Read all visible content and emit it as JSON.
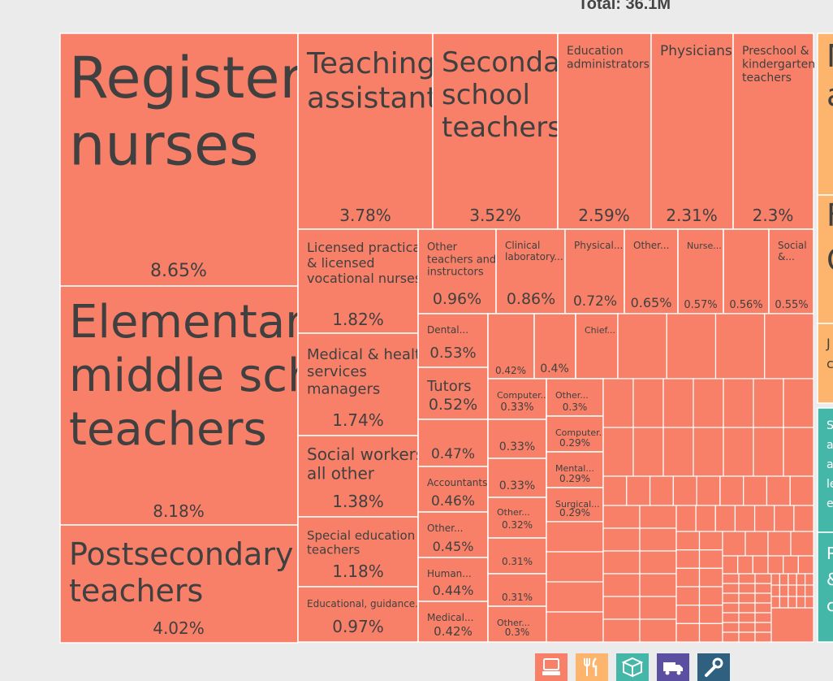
{
  "total_label": "Total: 36.1M",
  "chart_data": {
    "type": "treemap",
    "title": "",
    "colors": {
      "education_health": "#f98068",
      "orange_group": "#fdb46c",
      "teal_group": "#45b7a8",
      "border": "#ffffff"
    },
    "cells": [
      {
        "label": "Registered nurses",
        "value": "8.65%"
      },
      {
        "label": "Elementary & middle school teachers",
        "value": "8.18%"
      },
      {
        "label": "Postsecondary teachers",
        "value": "4.02%"
      },
      {
        "label": "Teaching assistants",
        "value": "3.78%"
      },
      {
        "label": "Secondary school teachers",
        "value": "3.52%"
      },
      {
        "label": "Education administrators",
        "value": "2.59%"
      },
      {
        "label": "Physicians",
        "value": "2.31%"
      },
      {
        "label": "Preschool & kindergarten teachers",
        "value": "2.3%"
      },
      {
        "label": "Licensed practical & licensed vocational nurses",
        "value": "1.82%"
      },
      {
        "label": "Medical & health services managers",
        "value": "1.74%"
      },
      {
        "label": "Social workers, all other",
        "value": "1.38%"
      },
      {
        "label": "Special education teachers",
        "value": "1.18%"
      },
      {
        "label": "Educational, guidance...",
        "value": "0.97%"
      },
      {
        "label": "Other teachers and instructors",
        "value": "0.96%"
      },
      {
        "label": "Clinical laboratory...",
        "value": "0.86%"
      },
      {
        "label": "Physical...",
        "value": "0.72%"
      },
      {
        "label": "Other...",
        "value": "0.65%"
      },
      {
        "label": "Nurse...",
        "value": "0.57%"
      },
      {
        "label": "",
        "value": "0.56%"
      },
      {
        "label": "Social &...",
        "value": "0.55%"
      },
      {
        "label": "Dental...",
        "value": "0.53%"
      },
      {
        "label": "Tutors",
        "value": "0.52%"
      },
      {
        "label": "",
        "value": "0.47%"
      },
      {
        "label": "Accountants...",
        "value": "0.46%"
      },
      {
        "label": "Other...",
        "value": "0.45%"
      },
      {
        "label": "Human...",
        "value": "0.44%"
      },
      {
        "label": "Medical...",
        "value": "0.42%"
      },
      {
        "label": "",
        "value": "0.42%"
      },
      {
        "label": "",
        "value": "0.4%"
      },
      {
        "label": "Chief...",
        "value": ""
      },
      {
        "label": "Computer...",
        "value": "0.33%"
      },
      {
        "label": "",
        "value": "0.33%"
      },
      {
        "label": "",
        "value": "0.33%"
      },
      {
        "label": "Other...",
        "value": "0.32%"
      },
      {
        "label": "",
        "value": "0.31%"
      },
      {
        "label": "",
        "value": "0.31%"
      },
      {
        "label": "Other...",
        "value": "0.3%"
      },
      {
        "label": "Other...",
        "value": "0.3%"
      },
      {
        "label": "Computer...",
        "value": "0.29%"
      },
      {
        "label": "Mental...",
        "value": "0.29%"
      },
      {
        "label": "Surgical...",
        "value": "0.29%"
      }
    ],
    "side_groups": [
      {
        "group": "orange",
        "letters": [
          "M",
          "a"
        ]
      },
      {
        "group": "orange",
        "letters": [
          "F",
          "C"
        ]
      },
      {
        "group": "orange",
        "letters": [
          "J",
          "c"
        ]
      },
      {
        "group": "teal",
        "letters": [
          "S",
          "a",
          "a",
          "le",
          "e"
        ]
      },
      {
        "group": "teal",
        "letters": [
          "R",
          "&",
          "c"
        ]
      }
    ]
  },
  "icons": [
    {
      "name": "computer-icon",
      "color": "#f98068"
    },
    {
      "name": "fork-knife-icon",
      "color": "#fdb46c"
    },
    {
      "name": "box-icon",
      "color": "#45b7a8"
    },
    {
      "name": "truck-icon",
      "color": "#5a4fa0"
    },
    {
      "name": "wrench-icon",
      "color": "#2f6080"
    }
  ]
}
